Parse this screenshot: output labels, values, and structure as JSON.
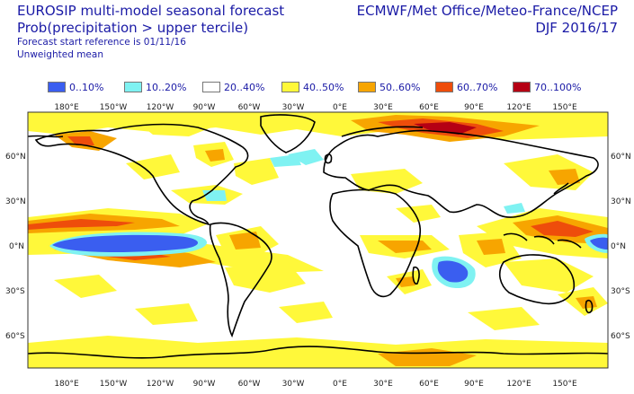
{
  "header": {
    "title_line1": "EUROSIP multi-model seasonal forecast",
    "title_line2": "Prob(precipitation > upper tercile)",
    "line3": "Forecast start reference is 01/11/16",
    "line4": "Unweighted mean",
    "centres": "ECMWF/Met Office/Meteo-France/NCEP",
    "season": "DJF 2016/17"
  },
  "legend": [
    {
      "label": "0..10%",
      "color": "#3a5ef0"
    },
    {
      "label": "10..20%",
      "color": "#7ff2f2"
    },
    {
      "label": "20..40%",
      "color": "#ffffff"
    },
    {
      "label": "40..50%",
      "color": "#fff83a"
    },
    {
      "label": "50..60%",
      "color": "#f7a500"
    },
    {
      "label": "60..70%",
      "color": "#ee4d0b"
    },
    {
      "label": "70..100%",
      "color": "#b50014"
    }
  ],
  "axes": {
    "top_lon_labels": [
      "180°E",
      "150°W",
      "120°W",
      "90°W",
      "60°W",
      "30°W",
      "0°E",
      "30°E",
      "60°E",
      "90°E",
      "120°E",
      "150°E"
    ],
    "bottom_lon_labels": [
      "180°E",
      "150°W",
      "120°W",
      "90°W",
      "60°W",
      "30°W",
      "0°E",
      "30°E",
      "60°E",
      "90°E",
      "120°E",
      "150°E"
    ],
    "left_lat_labels": [
      "60°N",
      "30°N",
      "0°N",
      "30°S",
      "60°S"
    ],
    "right_lat_labels": [
      "60°N",
      "30°N",
      "0°N",
      "30°S",
      "60°S"
    ]
  }
}
